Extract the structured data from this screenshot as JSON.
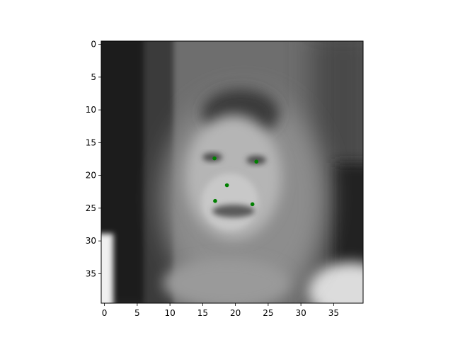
{
  "chart_data": {
    "type": "scatter",
    "title": "",
    "xlabel": "",
    "ylabel": "",
    "xlim": [
      -0.5,
      39.5
    ],
    "ylim": [
      39.5,
      -0.5
    ],
    "y_inverted": true,
    "background_image": "grayscale-face-photo",
    "x_ticks": [
      0,
      5,
      10,
      15,
      20,
      25,
      30,
      35
    ],
    "y_ticks": [
      0,
      5,
      10,
      15,
      20,
      25,
      30,
      35
    ],
    "x_tick_labels": [
      "0",
      "5",
      "10",
      "15",
      "20",
      "25",
      "30",
      "35"
    ],
    "y_tick_labels": [
      "0",
      "5",
      "10",
      "15",
      "20",
      "25",
      "30",
      "35"
    ],
    "grid": false,
    "legend": "none",
    "series": [
      {
        "marker_color": "#008000",
        "points": [
          {
            "x": 16.8,
            "y": 17.4
          },
          {
            "x": 23.2,
            "y": 17.9
          },
          {
            "x": 18.7,
            "y": 21.5
          },
          {
            "x": 16.9,
            "y": 23.9
          },
          {
            "x": 22.6,
            "y": 24.4
          }
        ]
      }
    ]
  }
}
